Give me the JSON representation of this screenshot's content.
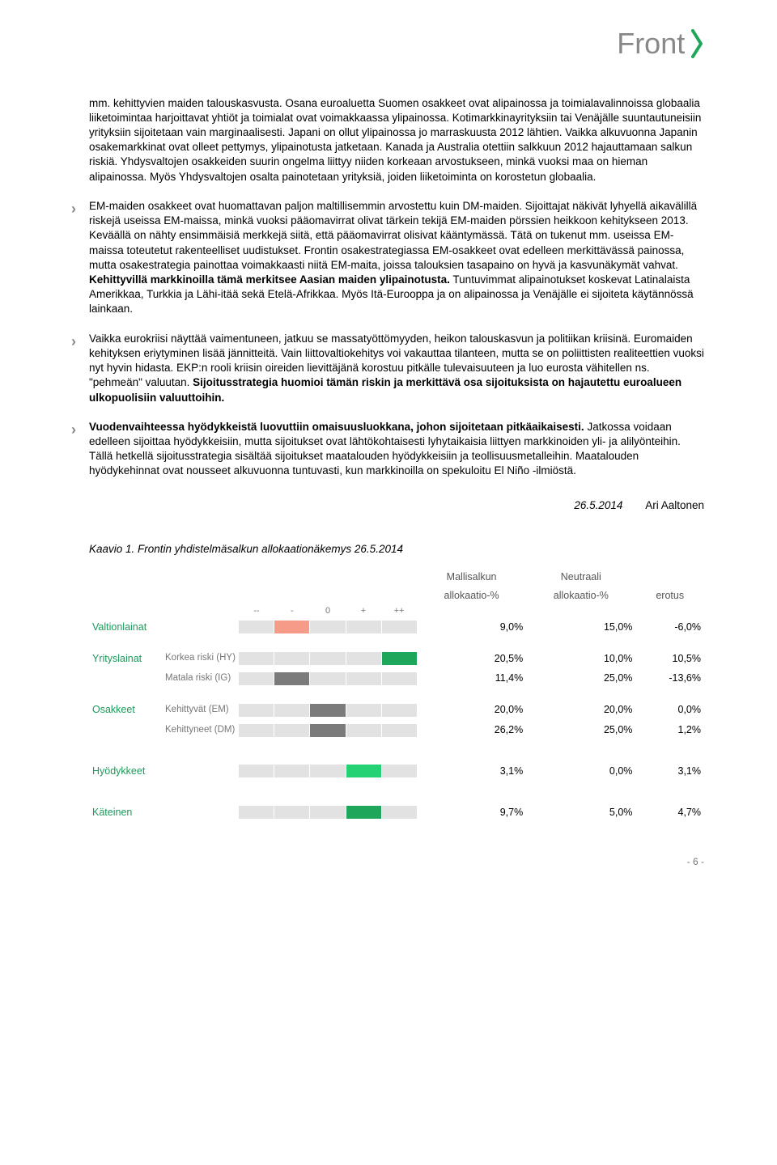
{
  "logo": {
    "text": "Front"
  },
  "paragraphs": {
    "p1a": "mm. kehittyvien maiden talouskasvusta. Osana euroaluetta Suomen osakkeet ovat alipainossa ja toimialavalinnoissa globaalia liiketoimintaa harjoittavat yhtiöt ja toimialat ovat voimakkaassa ylipainossa. Kotimarkkinayrityksiin tai Venäjälle suuntautuneisiin yrityksiin sijoitetaan vain marginaalisesti. Japani on ollut ylipainossa jo marraskuusta 2012 lähtien. Vaikka alkuvuonna Japanin osakemarkkinat ovat olleet pettymys, ylipainotusta jatketaan. Kanada ja Australia otettiin salkkuun 2012 hajauttamaan salkun riskiä. Yhdysvaltojen osakkeiden suurin ongelma liittyy niiden korkeaan arvostukseen, minkä vuoksi maa on hieman alipainossa. Myös Yhdysvaltojen osalta painotetaan yrityksiä, joiden liiketoiminta on korostetun globaalia.",
    "p2a": "EM-maiden osakkeet ovat huomattavan paljon maltillisemmin arvostettu kuin DM-maiden. Sijoittajat näkivät lyhyellä aikavälillä riskejä useissa EM-maissa, minkä vuoksi pääomavirrat olivat tärkein tekijä EM-maiden pörssien heikkoon kehitykseen 2013. Keväällä on nähty ensimmäisiä merkkejä siitä, että pääomavirrat olisivat kääntymässä. Tätä on tukenut mm. useissa EM-maissa toteutetut rakenteelliset uudistukset. Frontin osakestrategiassa EM-osakkeet ovat edelleen merkittävässä painossa, mutta osakestrategia painottaa voimakkaasti niitä EM-maita, joissa talouksien tasapaino on hyvä ja kasvunäkymät vahvat. ",
    "p2b": "Kehittyvillä markkinoilla tämä merkitsee Aasian maiden ylipainotusta.",
    "p2c": " Tuntuvimmat alipainotukset koskevat Latinalaista Amerikkaa, Turkkia ja Lähi-itää sekä Etelä-Afrikkaa. Myös Itä-Eurooppa ja on alipainossa ja Venäjälle ei sijoiteta käytännössä lainkaan.",
    "p3a": "Vaikka eurokriisi näyttää vaimentuneen, jatkuu se massatyöttömyyden, heikon talouskasvun ja politiikan kriisinä. Euromaiden kehityksen eriytyminen lisää jännitteitä. Vain liittovaltiokehitys voi vakauttaa tilanteen, mutta se on poliittisten realiteettien vuoksi nyt hyvin hidasta. EKP:n rooli kriisin oireiden lievittäjänä korostuu pitkälle tulevaisuuteen ja luo eurosta vähitellen ns. \"pehmeän\" valuutan. ",
    "p3b": "Sijoitusstrategia huomioi tämän riskin ja merkittävä osa sijoituksista on hajautettu euroalueen ulkopuolisiin valuuttoihin.",
    "p4a": "Vuodenvaihteessa hyödykkeistä luovuttiin omaisuusluokkana, johon sijoitetaan pitkäaikaisesti.",
    "p4b": " Jatkossa voidaan edelleen sijoittaa hyödykkeisiin, mutta sijoitukset ovat lähtökohtaisesti lyhytaikaisia liittyen markkinoiden yli- ja alilyönteihin. Tällä hetkellä sijoitusstrategia sisältää sijoitukset maatalouden hyödykkeisiin ja teollisuusmetalleihin. Maatalouden hyödykehinnat ovat nousseet alkuvuonna tuntuvasti, kun markkinoilla on spekuloitu El Niño -ilmiöstä."
  },
  "signature": {
    "date": "26.5.2014",
    "name": "Ari Aaltonen"
  },
  "caption": "Kaavio 1. Frontin yhdistelmäsalkun allokaationäkemys 26.5.2014",
  "headers": {
    "malli1": "Mallisalkun",
    "malli2": "allokaatio-%",
    "neutr1": "Neutraali",
    "neutr2": "allokaatio-%",
    "erotus": "erotus",
    "axis": {
      "mm": "--",
      "m": "-",
      "z": "0",
      "p": "+",
      "pp": "++"
    }
  },
  "rows": {
    "valtio": {
      "cat": "Valtionlainat",
      "sub": "",
      "malli": "9,0%",
      "neutr": "15,0%",
      "diff": "-6,0%",
      "bar": {
        "i": 1,
        "c": "#f59b87"
      }
    },
    "yritys": {
      "cat": "Yrityslainat"
    },
    "hy": {
      "sub": "Korkea riski (HY)",
      "malli": "20,5%",
      "neutr": "10,0%",
      "diff": "10,5%",
      "bar": {
        "i": 4,
        "c": "#1ea65a"
      }
    },
    "ig": {
      "sub": "Matala riski (IG)",
      "malli": "11,4%",
      "neutr": "25,0%",
      "diff": "-13,6%",
      "bar": {
        "i": 1,
        "c": "#7b7b7b"
      }
    },
    "osake": {
      "cat": "Osakkeet"
    },
    "em": {
      "sub": "Kehittyvät (EM)",
      "malli": "20,0%",
      "neutr": "20,0%",
      "diff": "0,0%",
      "bar": {
        "i": 2,
        "c": "#7b7b7b"
      }
    },
    "dm": {
      "sub": "Kehittyneet (DM)",
      "malli": "26,2%",
      "neutr": "25,0%",
      "diff": "1,2%",
      "bar": {
        "i": 2,
        "c": "#7b7b7b"
      }
    },
    "hyod": {
      "cat": "Hyödykkeet",
      "sub": "",
      "malli": "3,1%",
      "neutr": "0,0%",
      "diff": "3,1%",
      "bar": {
        "i": 3,
        "c": "#24d173"
      }
    },
    "kat": {
      "cat": "Käteinen",
      "sub": "",
      "malli": "9,7%",
      "neutr": "5,0%",
      "diff": "4,7%",
      "bar": {
        "i": 3,
        "c": "#1ea65a"
      }
    }
  },
  "colors": {
    "track": "#e2e2e2",
    "brand": "#1ea65a"
  },
  "pagenum": "- 6 -"
}
